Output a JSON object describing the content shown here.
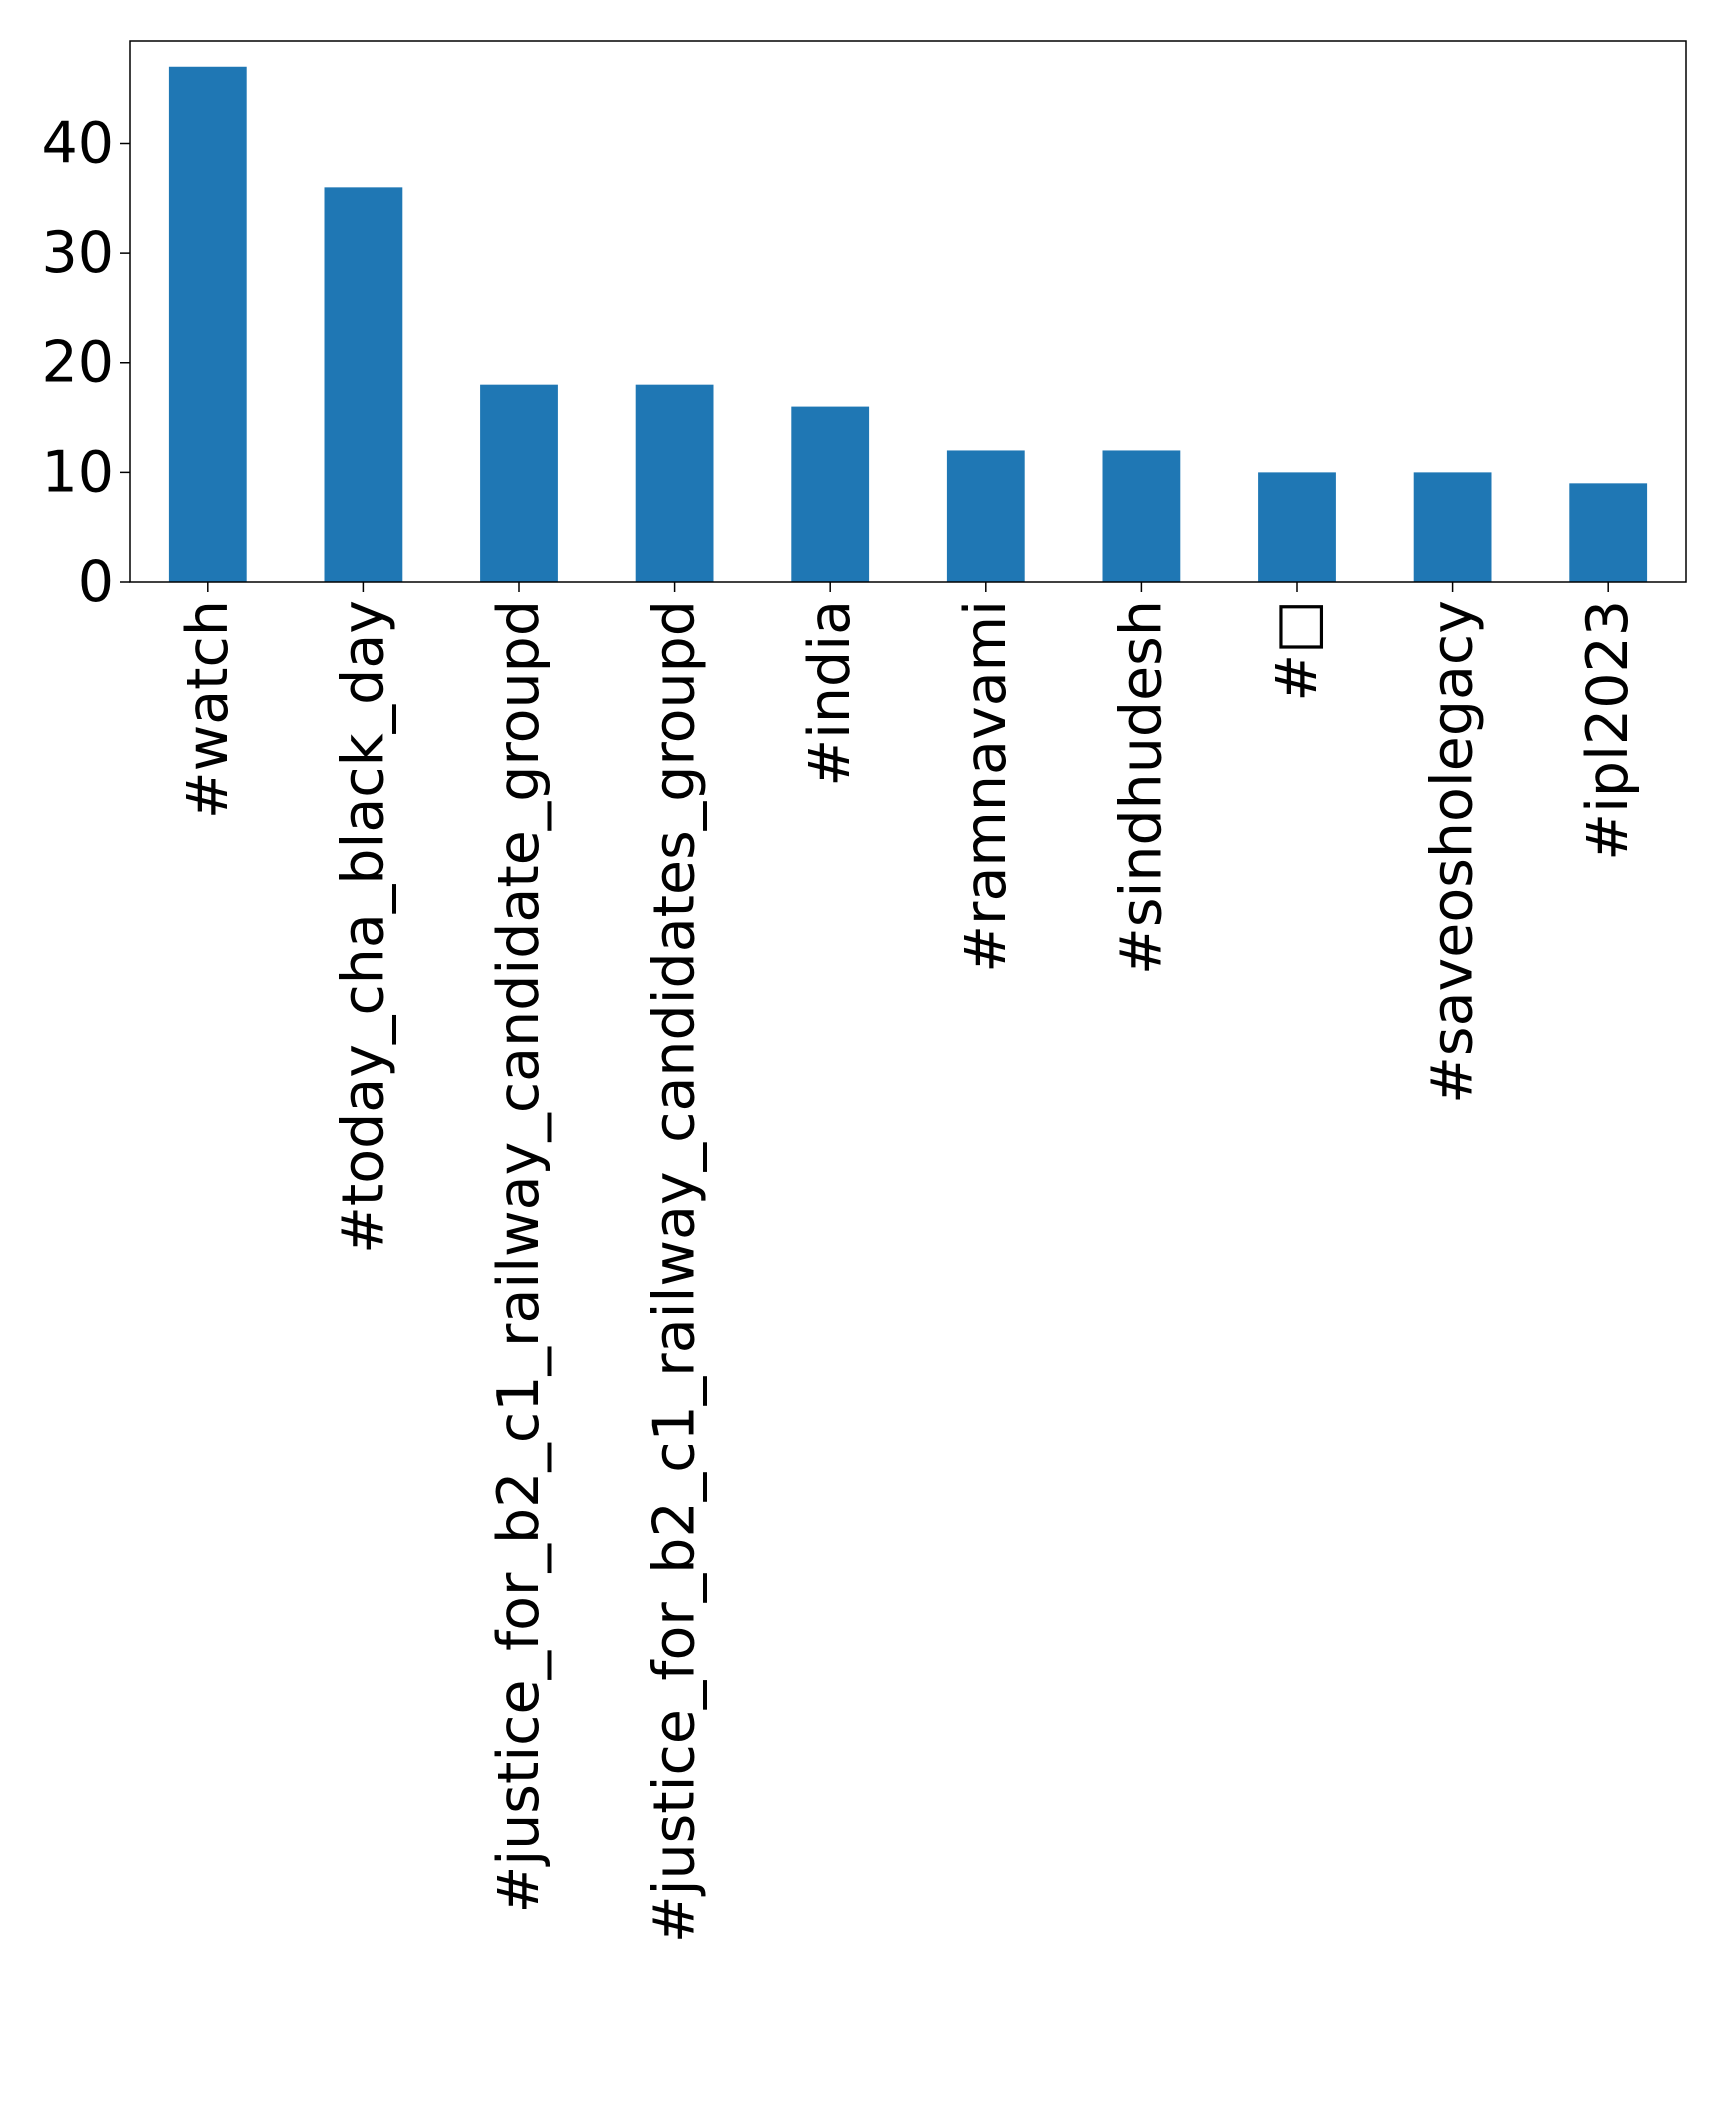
{
  "chart_data": {
    "type": "bar",
    "categories": [
      "#watch",
      "#today_cha_black_day",
      "#justice_for_b2_c1_railway_candidate_groupd",
      "#justice_for_b2_c1_railway_candidates_groupd",
      "#india",
      "#ramnavami",
      "#sindhudesh",
      "#□",
      "#saveosholegacy",
      "#ipl2023"
    ],
    "values": [
      47,
      36,
      18,
      18,
      16,
      12,
      12,
      10,
      10,
      9
    ],
    "title": "",
    "xlabel": "",
    "ylabel": "",
    "ylim": [
      0,
      49.35
    ],
    "yticks": [
      0,
      10,
      20,
      30,
      40
    ],
    "grid": false,
    "bar_color": "#1f77b4",
    "axis_color": "#000000"
  }
}
